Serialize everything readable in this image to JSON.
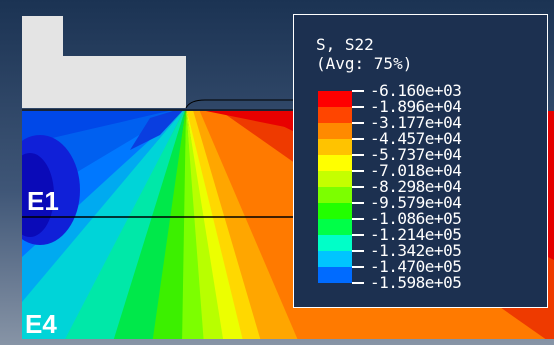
{
  "viewport": {
    "background_top": "#1c3454",
    "background_bottom": "#7f8da0"
  },
  "regions": {
    "upper_label": "E1",
    "lower_label": "E4"
  },
  "legend": {
    "variable": "S, S22",
    "averaging": "(Avg: 75%)",
    "values": [
      "-6.160e+03",
      "-1.896e+04",
      "-3.177e+04",
      "-4.457e+04",
      "-5.737e+04",
      "-7.018e+04",
      "-8.298e+04",
      "-9.579e+04",
      "-1.086e+05",
      "-1.214e+05",
      "-1.342e+05",
      "-1.470e+05",
      "-1.598e+05"
    ],
    "colors": [
      "#ff0000",
      "#ff4500",
      "#ff8a00",
      "#ffc300",
      "#ffff00",
      "#c5ff00",
      "#7cff00",
      "#22ff00",
      "#00ff48",
      "#00ffc8",
      "#00c5ff",
      "#006bff",
      "#0000ff"
    ]
  }
}
